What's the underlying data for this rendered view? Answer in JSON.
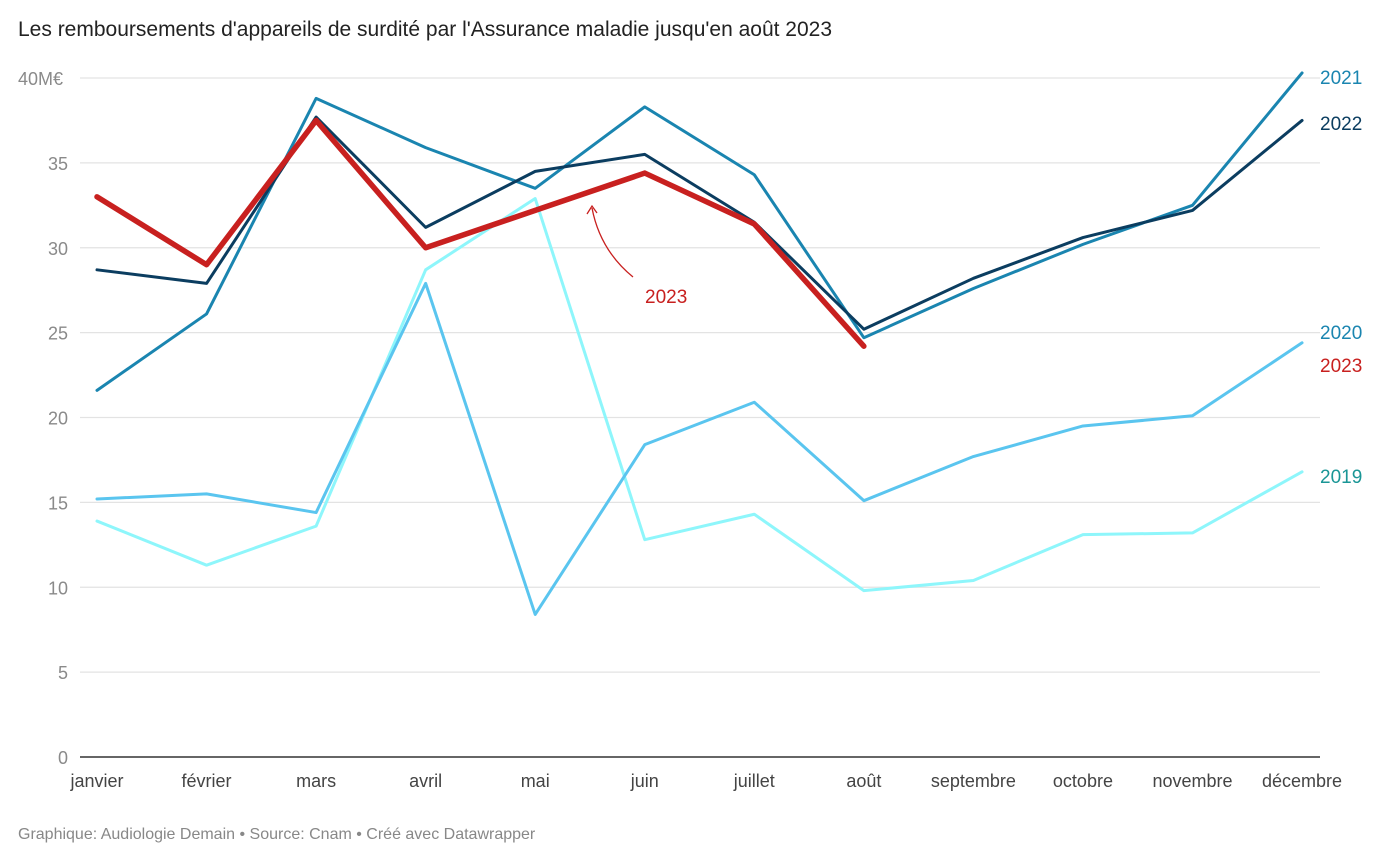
{
  "title": "Les remboursements d'appareils de surdité par l'Assurance maladie jusqu'en août 2023",
  "footer": "Graphique: Audiologie Demain • Source: Cnam • Créé avec Datawrapper",
  "chart_data": {
    "type": "line",
    "title": "Les remboursements d'appareils de surdité par l'Assurance maladie jusqu'en août 2023",
    "categories": [
      "janvier",
      "février",
      "mars",
      "avril",
      "mai",
      "juin",
      "juillet",
      "août",
      "septembre",
      "octobre",
      "novembre",
      "décembre"
    ],
    "y_ticks": [
      "0",
      "5",
      "10",
      "15",
      "20",
      "25",
      "30",
      "35",
      "40M€"
    ],
    "ylim": [
      0,
      40
    ],
    "grid": true,
    "legend": "direct labels at right",
    "series": [
      {
        "name": "2019",
        "color": "#8ef6fb",
        "label_color": "#1a9696",
        "values": [
          13.9,
          11.3,
          13.6,
          28.7,
          32.9,
          12.8,
          14.3,
          9.8,
          10.4,
          13.1,
          13.2,
          16.8
        ]
      },
      {
        "name": "2020",
        "color": "#5ac5ef",
        "label_color": "#1a85b0",
        "values": [
          15.2,
          15.5,
          14.4,
          27.9,
          8.4,
          18.4,
          20.9,
          15.1,
          17.7,
          19.5,
          20.1,
          24.4
        ]
      },
      {
        "name": "2021",
        "color": "#1a85b0",
        "label_color": "#1a85b0",
        "values": [
          21.6,
          26.1,
          38.8,
          35.9,
          33.5,
          38.3,
          34.3,
          24.7,
          27.6,
          30.2,
          32.5,
          40.3
        ]
      },
      {
        "name": "2022",
        "color": "#0b3d60",
        "label_color": "#0b3d60",
        "values": [
          28.7,
          27.9,
          37.7,
          31.2,
          34.5,
          35.5,
          31.5,
          25.2,
          28.2,
          30.6,
          32.2,
          37.5
        ]
      },
      {
        "name": "2023",
        "color": "#c8201f",
        "label_color": "#c8201f",
        "values": [
          33.0,
          29.0,
          37.5,
          30.0,
          32.2,
          34.4,
          31.4,
          24.2,
          null,
          null,
          null,
          null
        ]
      }
    ],
    "annotation": {
      "text": "2023",
      "color": "#c8201f"
    }
  }
}
